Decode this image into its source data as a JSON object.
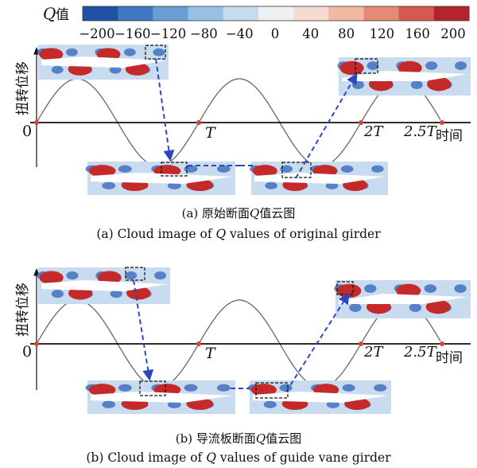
{
  "colorbar": {
    "label_italic": "Q",
    "label_suffix": "值",
    "ticks": [
      "−200",
      "−160",
      "−120",
      "−80",
      "−40",
      "0",
      "40",
      "80",
      "120",
      "160",
      "200"
    ],
    "colors": [
      "#1f52a6",
      "#3f78c3",
      "#6a9fd5",
      "#98c1e4",
      "#c6dbee",
      "#eef1f2",
      "#f6dcd0",
      "#f2b8a2",
      "#e68a73",
      "#d35a4d",
      "#b3242c"
    ]
  },
  "panels": [
    {
      "y_label": "扭转位移",
      "x_label": "时间",
      "origin": "0",
      "tick_T": "T",
      "tick_2T": "2T",
      "tick_25T": "2.5T",
      "caption_cn_prefix": "(a) 原始断面",
      "caption_cn_italic": "Q",
      "caption_cn_suffix": "值云图",
      "caption_en_prefix": "(a) Cloud image of ",
      "caption_en_italic": "Q",
      "caption_en_suffix": " values of original girder"
    },
    {
      "y_label": "扭转位移",
      "x_label": "时间",
      "origin": "0",
      "tick_T": "T",
      "tick_2T": "2T",
      "tick_25T": "2.5T",
      "caption_cn_prefix": "(b) 导流板断面",
      "caption_cn_italic": "Q",
      "caption_cn_suffix": "值云图",
      "caption_en_prefix": "(b) Cloud image of ",
      "caption_en_italic": "Q",
      "caption_en_suffix": " values of guide vane girder"
    }
  ],
  "colors": {
    "curve": "#666666",
    "marker": "#d9423a",
    "dashed": "#2a48c4",
    "axis": "#111111",
    "flow_bg": "#c9dcef",
    "vortex_red": "#c42a2a",
    "vortex_blue": "#2f63b8"
  }
}
